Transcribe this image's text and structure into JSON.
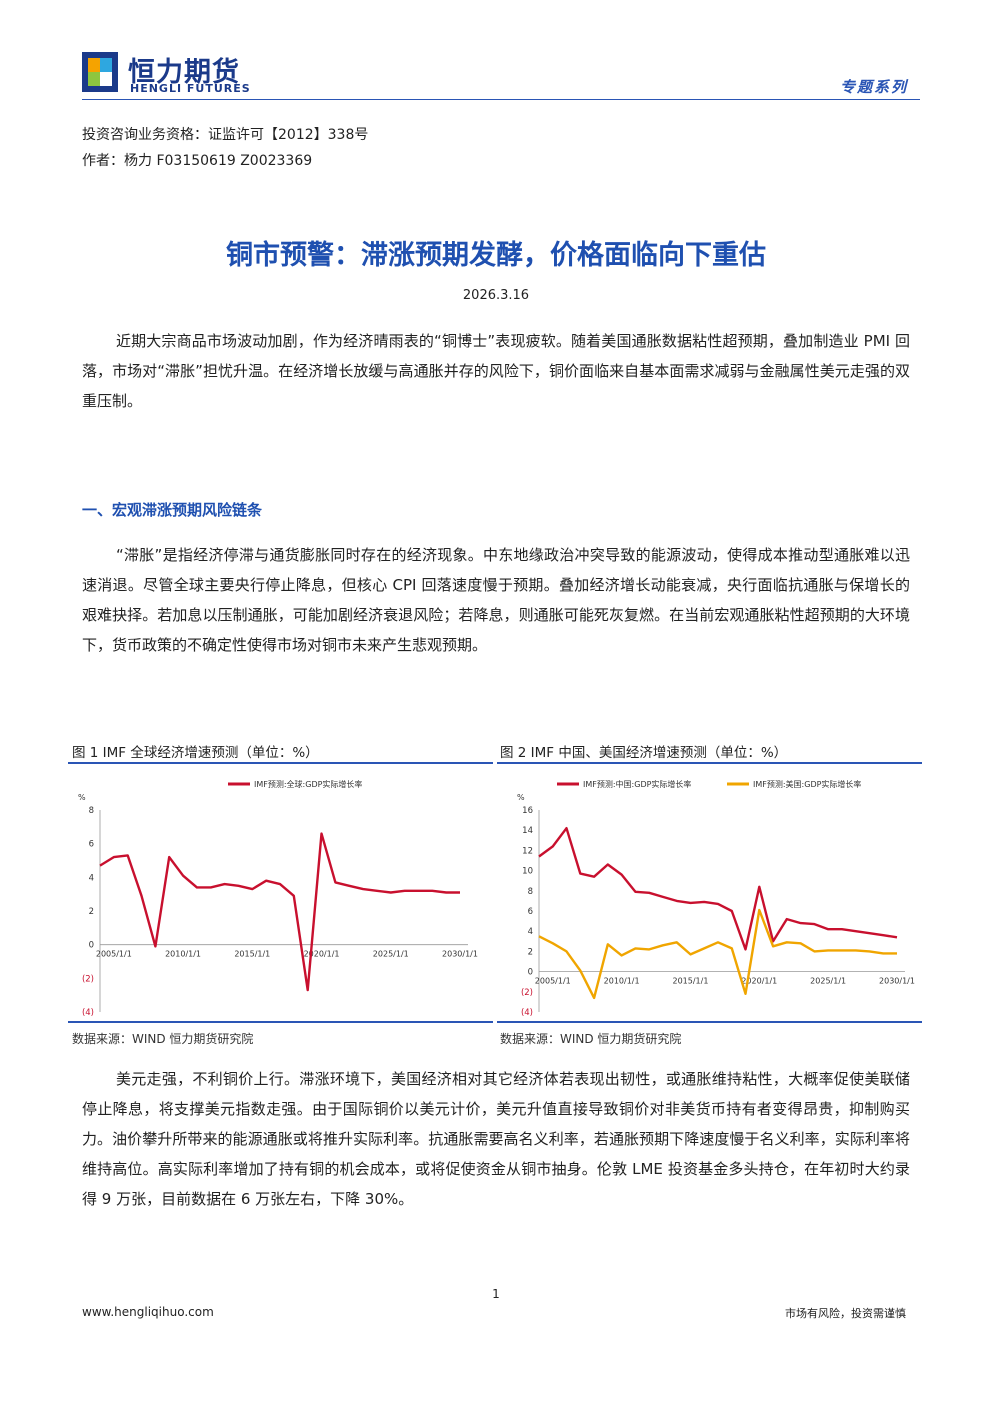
{
  "header": {
    "logo_cn": "恒力期货",
    "logo_en": "HENGLI FUTURES",
    "series": "专题系列"
  },
  "meta": {
    "qualification": "投资咨询业务资格：证监许可【2012】338号",
    "author": "作者：杨力  F03150619  Z0023369"
  },
  "title": "铜市预警：滞涨预期发酵，价格面临向下重估",
  "date": "2026.3.16",
  "intro": "近期大宗商品市场波动加剧，作为经济晴雨表的“铜博士”表现疲软。随着美国通胀数据粘性超预期，叠加制造业 PMI 回落，市场对“滞胀”担忧升温。在经济增长放缓与高通胀并存的风险下，铜价面临来自基本面需求减弱与金融属性美元走强的双重压制。",
  "section1": {
    "heading": "一、宏观滞涨预期风险链条",
    "para": "“滞胀”是指经济停滞与通货膨胀同时存在的经济现象。中东地缘政治冲突导致的能源波动，使得成本推动型通胀难以迅速消退。尽管全球主要央行停止降息，但核心 CPI 回落速度慢于预期。叠加经济增长动能衰减，央行面临抗通胀与保增长的艰难抉择。若加息以压制通胀，可能加剧经济衰退风险；若降息，则通胀可能死灰复燃。在当前宏观通胀粘性超预期的大环境下，货币政策的不确定性使得市场对铜市未来产生悲观预期。"
  },
  "figures": {
    "fig1_caption": "图 1 IMF 全球经济增速预测（单位：%）",
    "fig2_caption": "图 2 IMF 中国、美国经济增速预测（单位：%）",
    "source1": "数据来源：WIND 恒力期货研究院",
    "source2": "数据来源：WIND 恒力期货研究院"
  },
  "para2": "美元走强，不利铜价上行。滞涨环境下，美国经济相对其它经济体若表现出韧性，或通胀维持粘性，大概率促使美联储停止降息，将支撑美元指数走强。由于国际铜价以美元计价，美元升值直接导致铜价对非美货币持有者变得昂贵，抑制购买力。油价攀升所带来的能源通胀或将推升实际利率。抗通胀需要高名义利率，若通胀预期下降速度慢于名义利率，实际利率将维持高位。高实际利率增加了持有铜的机会成本，或将促使资金从铜市抽身。伦敦 LME 投资基金多头持仓，在年初时大约录得 9 万张，目前数据在 6 万张左右，下降 30%。",
  "footer": {
    "page": "1",
    "url": "www.hengliqihuo.com",
    "risk": "市场有风险，投资需谨慎"
  },
  "chart_data": [
    {
      "type": "line",
      "unit_label": "%",
      "x": [
        "2004",
        "2005",
        "2006",
        "2007",
        "2008",
        "2009",
        "2010",
        "2011",
        "2012",
        "2013",
        "2014",
        "2015",
        "2016",
        "2017",
        "2018",
        "2019",
        "2020",
        "2021",
        "2022",
        "2023",
        "2024",
        "2025",
        "2026",
        "2027",
        "2028",
        "2029",
        "2030"
      ],
      "xticks": [
        "2005/1/1",
        "2010/1/1",
        "2015/1/1",
        "2020/1/1",
        "2025/1/1",
        "2030/1/1"
      ],
      "yticks": [
        "8",
        "6",
        "4",
        "2",
        "0",
        "(2)",
        "(4)"
      ],
      "ylim": [
        -4,
        8
      ],
      "series": [
        {
          "name": "IMF预测:全球:GDP实际增长率",
          "color": "#c8102e",
          "values": [
            4.7,
            5.2,
            5.3,
            2.9,
            -0.1,
            5.2,
            4.1,
            3.4,
            3.4,
            3.6,
            3.5,
            3.3,
            3.8,
            3.6,
            2.9,
            -2.7,
            6.6,
            3.7,
            3.5,
            3.3,
            3.2,
            3.1,
            3.2,
            3.2,
            3.2,
            3.1,
            3.1
          ]
        }
      ]
    },
    {
      "type": "line",
      "unit_label": "%",
      "x": [
        "2004",
        "2005",
        "2006",
        "2007",
        "2008",
        "2009",
        "2010",
        "2011",
        "2012",
        "2013",
        "2014",
        "2015",
        "2016",
        "2017",
        "2018",
        "2019",
        "2020",
        "2021",
        "2022",
        "2023",
        "2024",
        "2025",
        "2026",
        "2027",
        "2028",
        "2029",
        "2030"
      ],
      "xticks": [
        "2005/1/1",
        "2010/1/1",
        "2015/1/1",
        "2020/1/1",
        "2025/1/1",
        "2030/1/1"
      ],
      "yticks": [
        "16",
        "14",
        "12",
        "10",
        "8",
        "6",
        "4",
        "2",
        "0",
        "(2)",
        "(4)"
      ],
      "ylim": [
        -4,
        16
      ],
      "series": [
        {
          "name": "IMF预测:中国:GDP实际增长率",
          "color": "#c8102e",
          "values": [
            11.4,
            12.4,
            14.2,
            9.7,
            9.4,
            10.6,
            9.6,
            7.9,
            7.8,
            7.4,
            7.0,
            6.8,
            6.9,
            6.7,
            6.0,
            2.2,
            8.4,
            3.0,
            5.2,
            4.8,
            4.7,
            4.2,
            4.2,
            4.0,
            3.8,
            3.6,
            3.4
          ]
        },
        {
          "name": "IMF预测:美国:GDP实际增长率",
          "color": "#f0a500",
          "values": [
            3.5,
            2.8,
            2.0,
            0.1,
            -2.6,
            2.7,
            1.6,
            2.3,
            2.2,
            2.6,
            2.9,
            1.7,
            2.3,
            2.9,
            2.3,
            -2.2,
            6.1,
            2.5,
            2.9,
            2.8,
            2.0,
            2.1,
            2.1,
            2.1,
            2.0,
            1.8,
            1.8
          ]
        }
      ]
    }
  ]
}
